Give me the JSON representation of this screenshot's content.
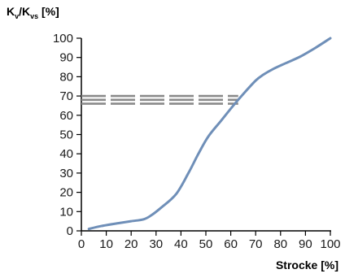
{
  "chart_data": {
    "type": "line",
    "ylabel": {
      "main": "K",
      "sub1": "v",
      "mid": "/K",
      "sub2": "vs",
      "unit": " [%]"
    },
    "xlabel": "Strocke [%]",
    "xlim": [
      0,
      100
    ],
    "ylim": [
      0,
      100
    ],
    "xticks": [
      "0",
      "10",
      "20",
      "30",
      "40",
      "50",
      "60",
      "70",
      "80",
      "90",
      "100"
    ],
    "yticks": [
      "0",
      "10",
      "20",
      "30",
      "40",
      "50",
      "60",
      "70",
      "80",
      "90",
      "100"
    ],
    "grid": false,
    "series": [
      {
        "color": "#6f8fb8",
        "x": [
          3,
          8,
          15,
          20,
          25,
          28,
          32,
          38,
          43,
          47,
          51,
          56,
          61,
          65,
          70,
          73,
          77,
          82,
          88,
          94,
          100
        ],
        "y": [
          1,
          2.5,
          4,
          5,
          6,
          8,
          12,
          19,
          30,
          40,
          49,
          57,
          65,
          71,
          78,
          81,
          84,
          87,
          90.5,
          95,
          100
        ]
      }
    ],
    "reference_lines": {
      "color": "#8a8a8a",
      "y": [
        66,
        68,
        70
      ],
      "x_range": [
        0,
        63
      ]
    }
  }
}
